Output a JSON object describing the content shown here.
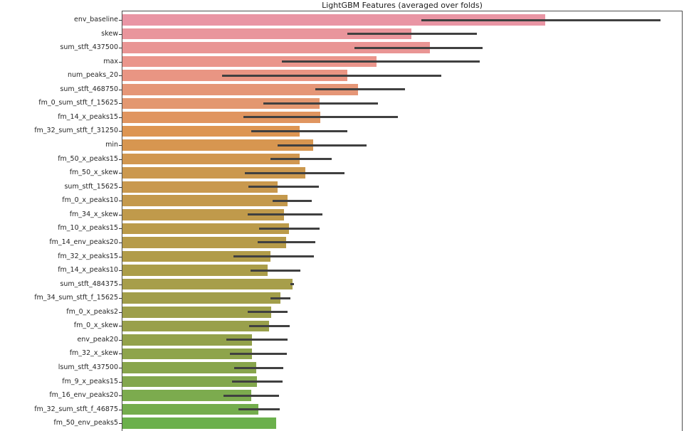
{
  "figure": {
    "title": "LightGBM Features (averaged over folds)"
  },
  "chart_data": {
    "type": "bar",
    "orientation": "horizontal",
    "title": "LightGBM Features (averaged over folds)",
    "xlabel": "",
    "ylabel": "",
    "grid": false,
    "legend": null,
    "x_axis_note": "x tick labels not visible in screenshot (cut off); values given in plot pixels",
    "xlim": [
      0,
      788
    ],
    "categories": [
      "env_baseline",
      "skew",
      "sum_stft_437500",
      "max",
      "num_peaks_20",
      "sum_stft_468750",
      "fm_0_sum_stft_f_15625",
      "fm_14_x_peaks15",
      "fm_32_sum_stft_f_31250",
      "min",
      "fm_50_x_peaks15",
      "fm_50_x_skew",
      "sum_stft_15625",
      "fm_0_x_peaks10",
      "fm_34_x_skew",
      "fm_10_x_peaks15",
      "fm_14_env_peaks20",
      "fm_32_x_peaks15",
      "fm_14_x_peaks10",
      "sum_stft_484375",
      "fm_34_sum_stft_f_15625",
      "fm_0_x_peaks2",
      "fm_0_x_skew",
      "env_peak20",
      "fm_32_x_skew",
      "lsum_stft_437500",
      "fm_9_x_peaks15",
      "fm_16_env_peaks20",
      "fm_32_sum_stft_f_46875",
      "fm_50_env_peaks5"
    ],
    "values": [
      594,
      406,
      432,
      357,
      316,
      331,
      277,
      278,
      249,
      268,
      249,
      257,
      218,
      232,
      227,
      234,
      230,
      208,
      204,
      239,
      222,
      209,
      206,
      182,
      182,
      188,
      189,
      181,
      191,
      216
    ],
    "error_bars": [
      [
        420,
        756
      ],
      [
        316,
        498
      ],
      [
        326,
        506
      ],
      [
        224,
        502
      ],
      [
        140,
        448
      ],
      [
        271,
        397
      ],
      [
        198,
        359
      ],
      [
        170,
        387
      ],
      [
        181,
        316
      ],
      [
        218,
        343
      ],
      [
        208,
        294
      ],
      [
        172,
        312
      ],
      [
        177,
        276
      ],
      [
        211,
        266
      ],
      [
        176,
        281
      ],
      [
        192,
        277
      ],
      [
        190,
        271
      ],
      [
        156,
        269
      ],
      [
        180,
        250
      ],
      [
        236,
        241
      ],
      [
        208,
        236
      ],
      [
        176,
        232
      ],
      [
        178,
        235
      ],
      [
        146,
        232
      ],
      [
        151,
        231
      ],
      [
        157,
        226
      ],
      [
        154,
        225
      ],
      [
        142,
        220
      ],
      [
        163,
        221
      ],
      null
    ],
    "bar_colors": [
      "#e995a4",
      "#e9959c",
      "#e99594",
      "#ea958b",
      "#e99583",
      "#e59677",
      "#e39770",
      "#e09560",
      "#dd9552",
      "#d79650",
      "#d19750",
      "#cb984e",
      "#c9994e",
      "#c4994c",
      "#c09a4b",
      "#bb9b4a",
      "#b69b49",
      "#b19c49",
      "#ab9d49",
      "#a79e4a",
      "#a29e4a",
      "#9d9f4a",
      "#99a04b",
      "#93a14b",
      "#8ea44c",
      "#88a54c",
      "#82a74d",
      "#7cab4e",
      "#74ad4d",
      "#6bb04c"
    ],
    "error_bar_color": "#404040",
    "axis_color": "#4d4d4d",
    "text_color": "#262626"
  }
}
